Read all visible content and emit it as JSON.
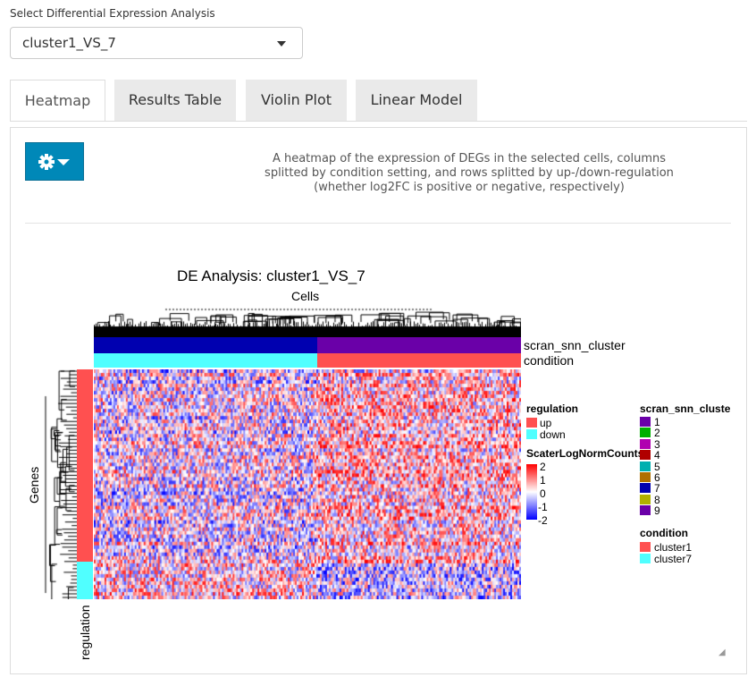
{
  "select": {
    "label": "Select Differential Expression Analysis",
    "value": "cluster1_VS_7"
  },
  "tabs": [
    {
      "label": "Heatmap",
      "active": true
    },
    {
      "label": "Results Table",
      "active": false
    },
    {
      "label": "Violin Plot",
      "active": false
    },
    {
      "label": "Linear Model",
      "active": false
    }
  ],
  "settings_button": {
    "icon": "gear-icon",
    "caret": "caret-down-icon"
  },
  "description": "A heatmap of the expression of DEGs in the selected cells, columns splitted by condition setting, and rows splitted by up-/down-regulation (whether log2FC is positive or negative, respectively)",
  "heatmap": {
    "title": "DE Analysis: cluster1_VS_7",
    "column_title": "Cells",
    "row_title": "Genes",
    "top_annotations": [
      "scran_snn_cluster",
      "condition"
    ],
    "row_annotation": "regulation",
    "legends": {
      "regulation": {
        "title": "regulation",
        "items": [
          {
            "label": "up",
            "color": "#FF5050"
          },
          {
            "label": "down",
            "color": "#50FFFF"
          }
        ]
      },
      "scale": {
        "title": "ScaterLogNormCounts",
        "ticks": [
          "2",
          "1",
          "0",
          "-1",
          "-2"
        ],
        "colors": [
          "#FF0000",
          "#FFFFFF",
          "#0000FF"
        ]
      },
      "cluster": {
        "title": "scran_snn_cluste",
        "items": [
          {
            "label": "1",
            "color": "#6A00A8"
          },
          {
            "label": "2",
            "color": "#00B000"
          },
          {
            "label": "3",
            "color": "#B000B0"
          },
          {
            "label": "4",
            "color": "#B00000"
          },
          {
            "label": "5",
            "color": "#00B0B0"
          },
          {
            "label": "6",
            "color": "#B07000"
          },
          {
            "label": "7",
            "color": "#0000B0"
          },
          {
            "label": "8",
            "color": "#B0B000"
          },
          {
            "label": "9",
            "color": "#6A00A8"
          }
        ]
      },
      "condition": {
        "title": "condition",
        "items": [
          {
            "label": "cluster1",
            "color": "#FF5050"
          },
          {
            "label": "cluster7",
            "color": "#50FFFF"
          }
        ]
      }
    }
  }
}
